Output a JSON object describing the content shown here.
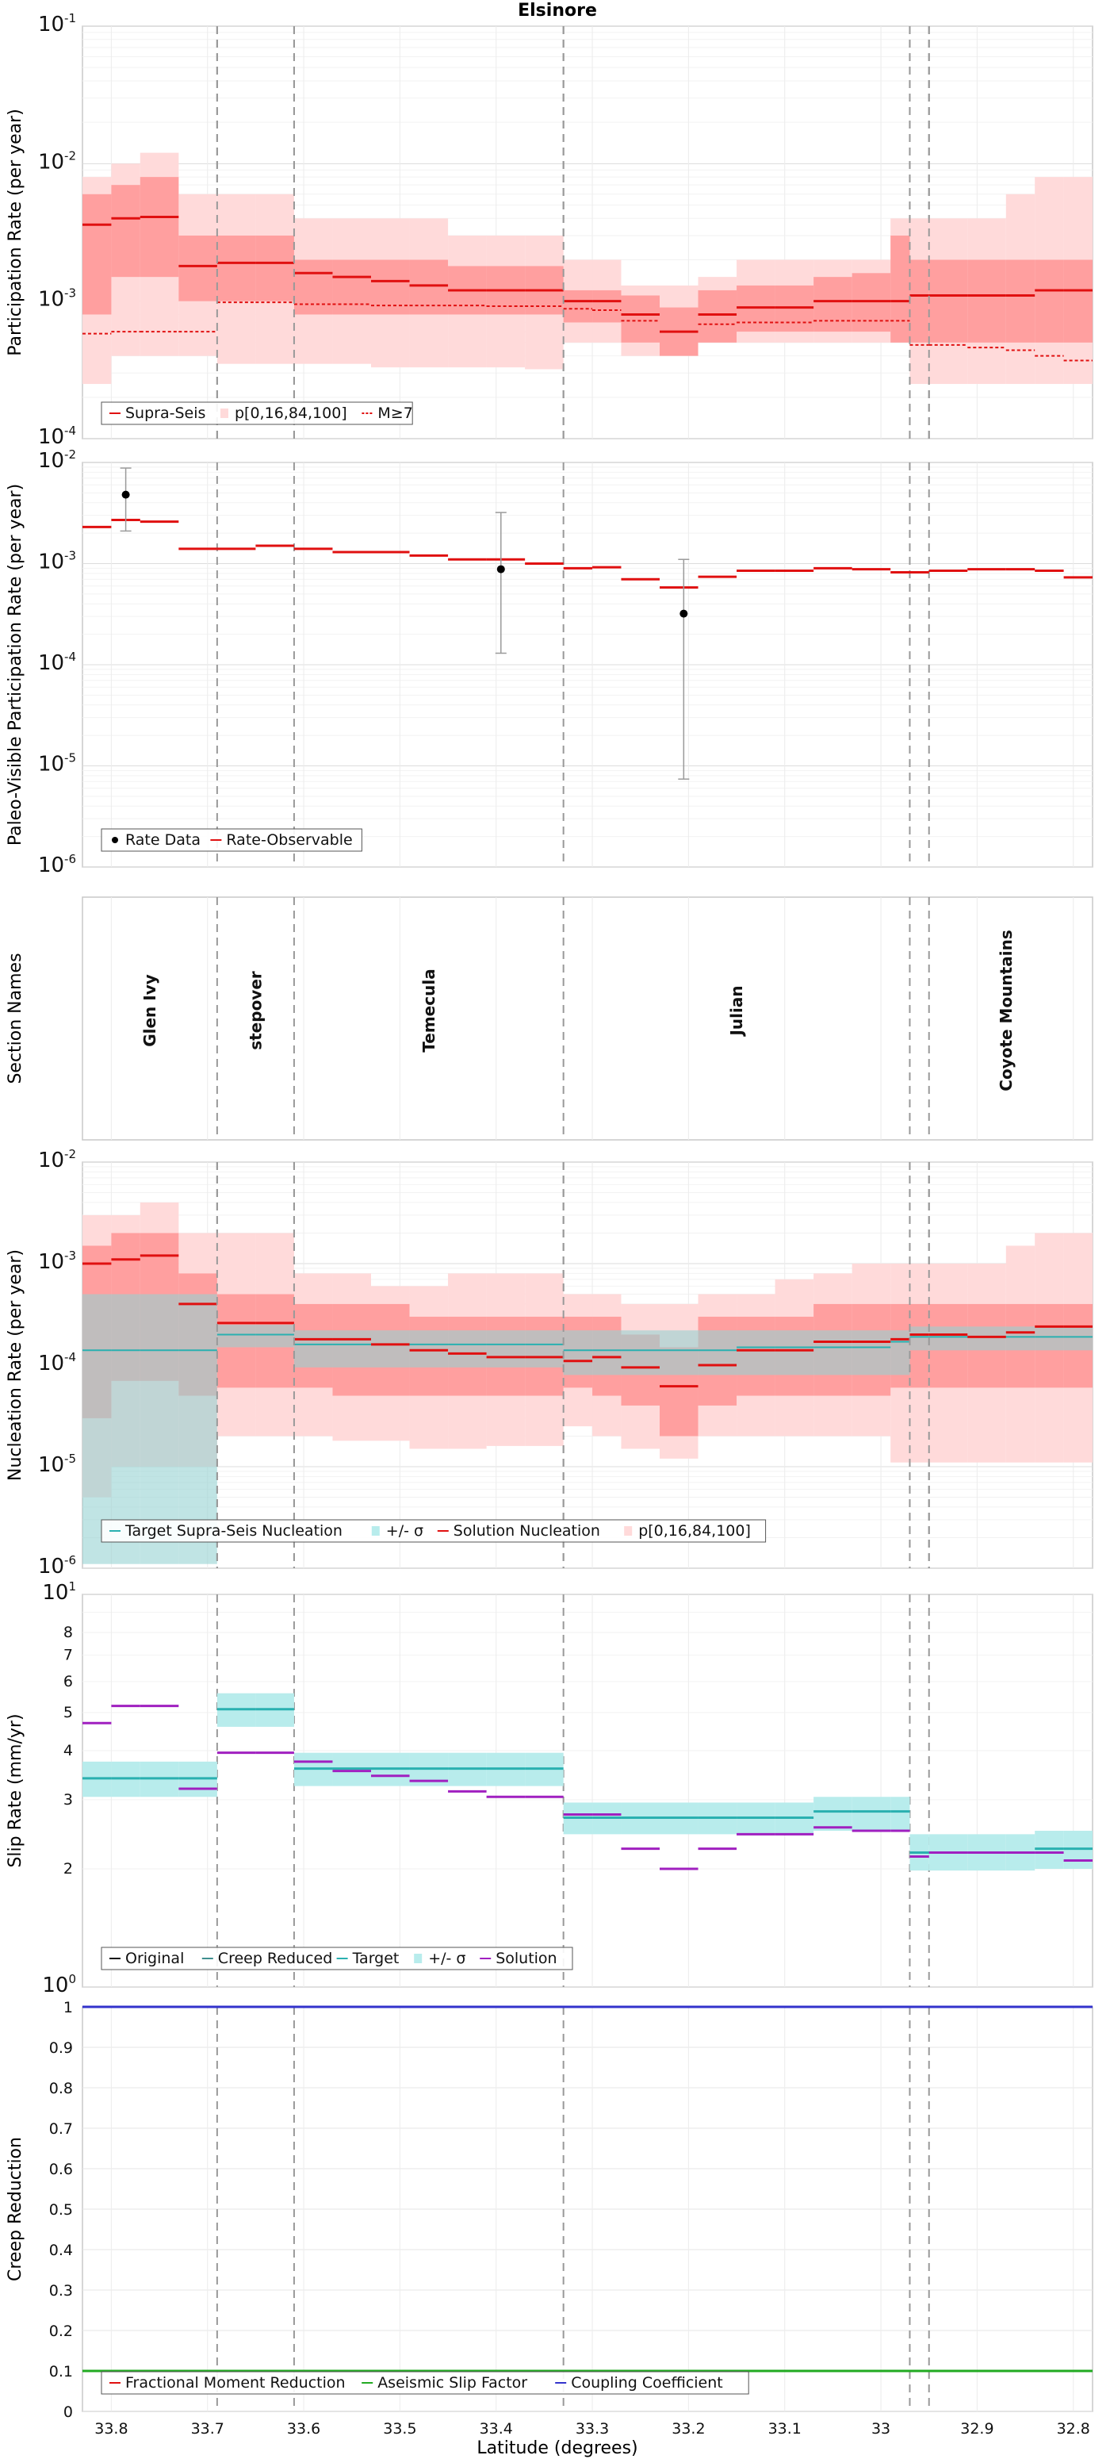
{
  "figure": {
    "title": "Elsinore",
    "xlabel": "Latitude (degrees)"
  },
  "x_ticks": [
    "33.8",
    "33.7",
    "33.6",
    "33.5",
    "33.4",
    "33.3",
    "33.2",
    "33.1",
    "33",
    "32.9",
    "32.8"
  ],
  "x_tick_values": [
    33.8,
    33.7,
    33.6,
    33.5,
    33.4,
    33.3,
    33.2,
    33.1,
    33.0,
    32.9,
    32.8
  ],
  "xlim": [
    33.83,
    32.78
  ],
  "section_boundaries": [
    33.69,
    33.61,
    33.33,
    32.97,
    32.95
  ],
  "colors": {
    "red": "#e01010",
    "cyan": "#2ab0b0",
    "purple": "#a020c0",
    "blue": "#3333cc",
    "green": "#22aa22",
    "grey_dash": "#999999",
    "band_light": "#ffdada",
    "band_dark": "#ff9f9f",
    "cyan_band": "#b8ecec"
  },
  "chart_data": [
    {
      "type": "line",
      "id": "participation",
      "ylabel": "Participation Rate (per year)",
      "yscale": "log",
      "ylim": [
        0.0001,
        0.1
      ],
      "legend": [
        "Supra-Seis",
        "p[0,16,84,100]",
        "M≥7"
      ],
      "segments_x": [
        [
          33.83,
          33.8
        ],
        [
          33.8,
          33.77
        ],
        [
          33.77,
          33.73
        ],
        [
          33.73,
          33.69
        ],
        [
          33.69,
          33.65
        ],
        [
          33.65,
          33.61
        ],
        [
          33.61,
          33.57
        ],
        [
          33.57,
          33.53
        ],
        [
          33.53,
          33.49
        ],
        [
          33.49,
          33.45
        ],
        [
          33.45,
          33.41
        ],
        [
          33.41,
          33.37
        ],
        [
          33.37,
          33.33
        ],
        [
          33.33,
          33.3
        ],
        [
          33.3,
          33.27
        ],
        [
          33.27,
          33.23
        ],
        [
          33.23,
          33.19
        ],
        [
          33.19,
          33.15
        ],
        [
          33.15,
          33.11
        ],
        [
          33.11,
          33.07
        ],
        [
          33.07,
          33.03
        ],
        [
          33.03,
          32.99
        ],
        [
          32.99,
          32.97
        ],
        [
          32.97,
          32.95
        ],
        [
          32.95,
          32.91
        ],
        [
          32.91,
          32.87
        ],
        [
          32.87,
          32.84
        ],
        [
          32.84,
          32.81
        ],
        [
          32.81,
          32.78
        ]
      ],
      "supra_seis": [
        0.0036,
        0.004,
        0.0041,
        0.0018,
        0.0019,
        0.0019,
        0.0016,
        0.0015,
        0.0014,
        0.0013,
        0.0012,
        0.0012,
        0.0012,
        0.001,
        0.001,
        0.0008,
        0.0006,
        0.0008,
        0.0009,
        0.0009,
        0.001,
        0.001,
        0.001,
        0.0011,
        0.0011,
        0.0011,
        0.0011,
        0.0012,
        0.0012
      ],
      "m7": [
        0.00058,
        0.0006,
        0.0006,
        0.0006,
        0.00098,
        0.00098,
        0.00095,
        0.00095,
        0.00093,
        0.00093,
        0.00093,
        0.00092,
        0.00092,
        0.00088,
        0.00086,
        0.00072,
        0.0006,
        0.00068,
        0.0007,
        0.0007,
        0.00072,
        0.00072,
        0.00072,
        0.00048,
        0.00048,
        0.00046,
        0.00044,
        0.0004,
        0.00037
      ],
      "p0": [
        0.00025,
        0.0004,
        0.0004,
        0.0004,
        0.00035,
        0.00035,
        0.00035,
        0.00035,
        0.00033,
        0.00033,
        0.00033,
        0.00033,
        0.00032,
        0.0005,
        0.0005,
        0.0004,
        0.0004,
        0.0005,
        0.0005,
        0.0005,
        0.0005,
        0.0005,
        0.0005,
        0.00025,
        0.00025,
        0.00025,
        0.00025,
        0.00025,
        0.00025
      ],
      "p100": [
        0.008,
        0.01,
        0.012,
        0.006,
        0.006,
        0.006,
        0.004,
        0.004,
        0.004,
        0.004,
        0.003,
        0.003,
        0.003,
        0.002,
        0.002,
        0.0013,
        0.0013,
        0.0015,
        0.002,
        0.002,
        0.002,
        0.002,
        0.004,
        0.004,
        0.004,
        0.004,
        0.006,
        0.008,
        0.008
      ],
      "p16": [
        0.0008,
        0.0015,
        0.0015,
        0.001,
        0.001,
        0.001,
        0.0008,
        0.0008,
        0.0008,
        0.0008,
        0.0008,
        0.0008,
        0.0008,
        0.0007,
        0.0007,
        0.0005,
        0.0004,
        0.0005,
        0.0006,
        0.0006,
        0.0006,
        0.0006,
        0.0005,
        0.0005,
        0.0005,
        0.0005,
        0.0005,
        0.0005,
        0.0005
      ],
      "p84": [
        0.006,
        0.007,
        0.008,
        0.003,
        0.003,
        0.003,
        0.002,
        0.002,
        0.002,
        0.002,
        0.0018,
        0.0018,
        0.0018,
        0.0012,
        0.0012,
        0.0011,
        0.0009,
        0.0012,
        0.0013,
        0.0013,
        0.0015,
        0.0016,
        0.003,
        0.002,
        0.002,
        0.002,
        0.002,
        0.002,
        0.002
      ]
    },
    {
      "type": "line",
      "id": "paleo",
      "ylabel": "Paleo-Visible Participation Rate (per year)",
      "yscale": "log",
      "ylim": [
        1e-06,
        0.01
      ],
      "legend": [
        "Rate Data",
        "Rate-Observable"
      ],
      "rate_observable": [
        0.0023,
        0.0027,
        0.0026,
        0.0014,
        0.0014,
        0.0015,
        0.0014,
        0.0013,
        0.0013,
        0.0012,
        0.0011,
        0.0011,
        0.001,
        0.0009,
        0.00092,
        0.0007,
        0.00058,
        0.00074,
        0.00085,
        0.00085,
        0.0009,
        0.00088,
        0.00082,
        0.00082,
        0.00085,
        0.00088,
        0.00088,
        0.00085,
        0.00073
      ],
      "rate_data": [
        {
          "x": 33.785,
          "y": 0.0048,
          "lo": 0.0021,
          "hi": 0.0088
        },
        {
          "x": 33.395,
          "y": 0.00088,
          "lo": 0.00013,
          "hi": 0.0032
        },
        {
          "x": 33.205,
          "y": 0.00032,
          "lo": 7.4e-06,
          "hi": 0.0011
        }
      ]
    },
    {
      "type": "table",
      "id": "sections",
      "ylabel": "Section Names",
      "names": [
        "Glen Ivy",
        "stepover",
        "Temecula",
        "Julian",
        "Coyote Mountains"
      ],
      "name_x": [
        33.76,
        33.65,
        33.47,
        33.15,
        32.87
      ]
    },
    {
      "type": "line",
      "id": "nucleation",
      "ylabel": "Nucleation Rate (per year)",
      "yscale": "log",
      "ylim": [
        1e-06,
        0.01
      ],
      "legend": [
        "Target Supra-Seis Nucleation",
        "+/- σ",
        "Solution Nucleation",
        "p[0,16,84,100]"
      ],
      "solution": [
        0.001,
        0.0011,
        0.0012,
        0.0004,
        0.00026,
        0.00026,
        0.00018,
        0.00018,
        0.00016,
        0.00014,
        0.00013,
        0.00012,
        0.00012,
        0.00011,
        0.00012,
        9.5e-05,
        6.2e-05,
        0.0001,
        0.00014,
        0.00014,
        0.00017,
        0.00017,
        0.00018,
        0.0002,
        0.0002,
        0.00019,
        0.00021,
        0.00024,
        0.00024
      ],
      "target": [
        0.00014,
        0.00014,
        0.00014,
        0.00014,
        0.0002,
        0.0002,
        0.00016,
        0.00016,
        0.00016,
        0.00016,
        0.00016,
        0.00016,
        0.00016,
        0.00014,
        0.00014,
        0.00014,
        0.00014,
        0.00014,
        0.00015,
        0.00015,
        0.00015,
        0.00015,
        0.00017,
        0.00019,
        0.00019,
        0.00019,
        0.00019,
        0.00019,
        0.00019
      ],
      "target_lo": [
        1.1e-06,
        1.1e-06,
        1.1e-06,
        1.1e-06,
        0.00015,
        0.00015,
        9.5e-05,
        9.5e-05,
        9.5e-05,
        9.5e-05,
        9.5e-05,
        9.5e-05,
        9.5e-05,
        8e-05,
        8e-05,
        8e-05,
        8e-05,
        8e-05,
        8e-05,
        8e-05,
        8e-05,
        8e-05,
        8e-05,
        0.00014,
        0.00014,
        0.00014,
        0.00014,
        0.00014,
        0.00014
      ],
      "target_hi": [
        0.0005,
        0.0005,
        0.0005,
        0.0005,
        0.00025,
        0.00025,
        0.00022,
        0.00022,
        0.00022,
        0.00022,
        0.00022,
        0.00022,
        0.00022,
        0.00022,
        0.00022,
        0.00022,
        0.00022,
        0.00022,
        0.00022,
        0.00022,
        0.00022,
        0.00022,
        0.00022,
        0.00024,
        0.00024,
        0.00024,
        0.00024,
        0.00024,
        0.00024
      ],
      "p0": [
        5e-06,
        1e-05,
        1e-05,
        1e-05,
        2e-05,
        2e-05,
        2e-05,
        1.8e-05,
        1.8e-05,
        1.5e-05,
        1.5e-05,
        1.6e-05,
        1.6e-05,
        2.5e-05,
        2e-05,
        1.5e-05,
        1.2e-05,
        2e-05,
        2e-05,
        2e-05,
        2e-05,
        2e-05,
        1.1e-05,
        1.1e-05,
        1.1e-05,
        1.1e-05,
        1.1e-05,
        1.1e-05,
        1.1e-05
      ],
      "p16": [
        3e-05,
        7e-05,
        7e-05,
        5e-05,
        6e-05,
        6e-05,
        6e-05,
        5e-05,
        5e-05,
        5e-05,
        5e-05,
        5e-05,
        5e-05,
        6e-05,
        5e-05,
        4e-05,
        2e-05,
        4e-05,
        5e-05,
        5e-05,
        5e-05,
        5e-05,
        6e-05,
        6e-05,
        6e-05,
        6e-05,
        6e-05,
        6e-05,
        6e-05
      ],
      "p84": [
        0.0015,
        0.002,
        0.002,
        0.0008,
        0.0005,
        0.0005,
        0.0004,
        0.0004,
        0.0004,
        0.0003,
        0.0003,
        0.0003,
        0.0003,
        0.0003,
        0.0003,
        0.0002,
        0.00015,
        0.0003,
        0.0003,
        0.0003,
        0.0004,
        0.0004,
        0.0004,
        0.0004,
        0.0004,
        0.0004,
        0.0004,
        0.0004,
        0.0004
      ],
      "p100": [
        0.003,
        0.003,
        0.004,
        0.002,
        0.002,
        0.002,
        0.0008,
        0.0008,
        0.0006,
        0.0006,
        0.0008,
        0.0008,
        0.0008,
        0.0005,
        0.0005,
        0.0004,
        0.0004,
        0.0005,
        0.0005,
        0.0007,
        0.0008,
        0.001,
        0.001,
        0.001,
        0.001,
        0.001,
        0.0015,
        0.002,
        0.002
      ]
    },
    {
      "type": "line",
      "id": "slip",
      "ylabel": "Slip Rate (mm/yr)",
      "yscale": "log",
      "ylim": [
        1,
        10
      ],
      "y_minor_labels": [
        "2",
        "3",
        "4",
        "5",
        "6",
        "7",
        "8"
      ],
      "legend": [
        "Original",
        "Creep Reduced",
        "Target",
        "+/- σ",
        "Solution"
      ],
      "target": [
        3.4,
        3.4,
        3.4,
        3.4,
        5.1,
        5.1,
        3.6,
        3.6,
        3.6,
        3.6,
        3.6,
        3.6,
        3.6,
        2.7,
        2.7,
        2.7,
        2.7,
        2.7,
        2.7,
        2.7,
        2.8,
        2.8,
        2.8,
        2.2,
        2.2,
        2.2,
        2.2,
        2.25,
        2.25
      ],
      "target_lo": [
        3.05,
        3.05,
        3.05,
        3.05,
        4.6,
        4.6,
        3.25,
        3.25,
        3.25,
        3.25,
        3.25,
        3.25,
        3.25,
        2.45,
        2.45,
        2.45,
        2.45,
        2.45,
        2.45,
        2.45,
        2.5,
        2.5,
        2.5,
        1.98,
        1.98,
        1.98,
        1.98,
        2.0,
        2.0
      ],
      "target_hi": [
        3.75,
        3.75,
        3.75,
        3.75,
        5.6,
        5.6,
        3.95,
        3.95,
        3.95,
        3.95,
        3.95,
        3.95,
        3.95,
        2.95,
        2.95,
        2.95,
        2.95,
        2.95,
        2.95,
        2.95,
        3.05,
        3.05,
        3.05,
        2.45,
        2.45,
        2.45,
        2.45,
        2.5,
        2.5
      ],
      "solution": [
        4.7,
        5.2,
        5.2,
        3.2,
        3.95,
        3.95,
        3.75,
        3.55,
        3.45,
        3.35,
        3.15,
        3.05,
        3.05,
        2.75,
        2.75,
        2.25,
        2.0,
        2.25,
        2.45,
        2.45,
        2.55,
        2.5,
        2.5,
        2.15,
        2.2,
        2.2,
        2.2,
        2.2,
        2.1
      ]
    },
    {
      "type": "line",
      "id": "creep",
      "ylabel": "Creep Reduction",
      "yscale": "linear",
      "ylim": [
        0,
        1
      ],
      "y_ticks": [
        "0",
        "0.1",
        "0.2",
        "0.3",
        "0.4",
        "0.5",
        "0.6",
        "0.7",
        "0.8",
        "0.9",
        "1"
      ],
      "legend": [
        "Fractional Moment Reduction",
        "Aseismic Slip Factor",
        "Coupling Coefficient"
      ],
      "aseismic_slip_factor": 0.1,
      "coupling_coefficient": 1.0
    }
  ]
}
